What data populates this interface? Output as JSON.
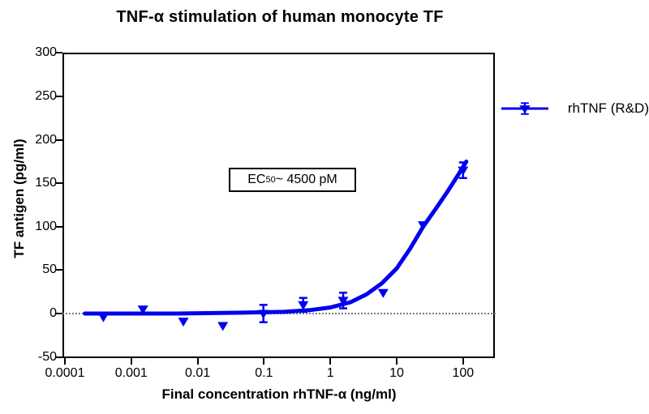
{
  "figure": {
    "title": "TNF-α stimulation of human monocyte TF",
    "legend_label": "rhTNF (R&D)",
    "annotation": {
      "prefix": "EC",
      "sub": "50",
      "rest": " ~ 4500 pM"
    }
  },
  "colors": {
    "series_blue": "#0000EE",
    "ink_black": "#000000",
    "baseline_gray": "#7A7A7A",
    "background": "#FFFFFF"
  },
  "chart_data": {
    "type": "scatter",
    "title": "TNF-α stimulation of human monocyte TF",
    "xlabel": "Final concentration rhTNF-α (ng/ml)",
    "ylabel": "TF antigen (pg/ml)",
    "x_scale": "log",
    "xlim": [
      0.0001,
      300
    ],
    "ylim": [
      -50,
      300
    ],
    "grid": false,
    "legend_position": "right",
    "baseline_y": 0,
    "x_ticks": [
      {
        "v": 0.0001,
        "label": "0.0001"
      },
      {
        "v": 0.001,
        "label": "0.001"
      },
      {
        "v": 0.01,
        "label": "0.01"
      },
      {
        "v": 0.1,
        "label": "0.1"
      },
      {
        "v": 1,
        "label": "1"
      },
      {
        "v": 10,
        "label": "10"
      },
      {
        "v": 100,
        "label": "100"
      }
    ],
    "y_ticks": [
      {
        "v": 300,
        "label": "300"
      },
      {
        "v": 250,
        "label": "250"
      },
      {
        "v": 200,
        "label": "200"
      },
      {
        "v": 150,
        "label": "150"
      },
      {
        "v": 100,
        "label": "100"
      },
      {
        "v": 50,
        "label": "50"
      },
      {
        "v": 0,
        "label": "0"
      },
      {
        "v": -50,
        "label": "-50"
      }
    ],
    "series": [
      {
        "name": "rhTNF (R&D)",
        "marker": "triangle-down",
        "color": "#0000EE",
        "points": [
          {
            "x": 0.00038,
            "y": -4
          },
          {
            "x": 0.0015,
            "y": 5
          },
          {
            "x": 0.0061,
            "y": -9
          },
          {
            "x": 0.024,
            "y": -14
          },
          {
            "x": 0.098,
            "y": 0,
            "sd": 10
          },
          {
            "x": 0.39,
            "y": 10,
            "sd": 8
          },
          {
            "x": 1.56,
            "y": 15,
            "sd": 9
          },
          {
            "x": 6.25,
            "y": 24
          },
          {
            "x": 25,
            "y": 102
          },
          {
            "x": 100,
            "y": 165,
            "sd": 9
          }
        ],
        "fit_curve": [
          [
            0.0002,
            0
          ],
          [
            0.005,
            0
          ],
          [
            0.05,
            1
          ],
          [
            0.2,
            2
          ],
          [
            0.5,
            4
          ],
          [
            1,
            7
          ],
          [
            2,
            13
          ],
          [
            3.5,
            22
          ],
          [
            6,
            35
          ],
          [
            10,
            52
          ],
          [
            16,
            75
          ],
          [
            25,
            100
          ],
          [
            40,
            122
          ],
          [
            60,
            142
          ],
          [
            85,
            160
          ],
          [
            112,
            175
          ]
        ]
      }
    ]
  }
}
